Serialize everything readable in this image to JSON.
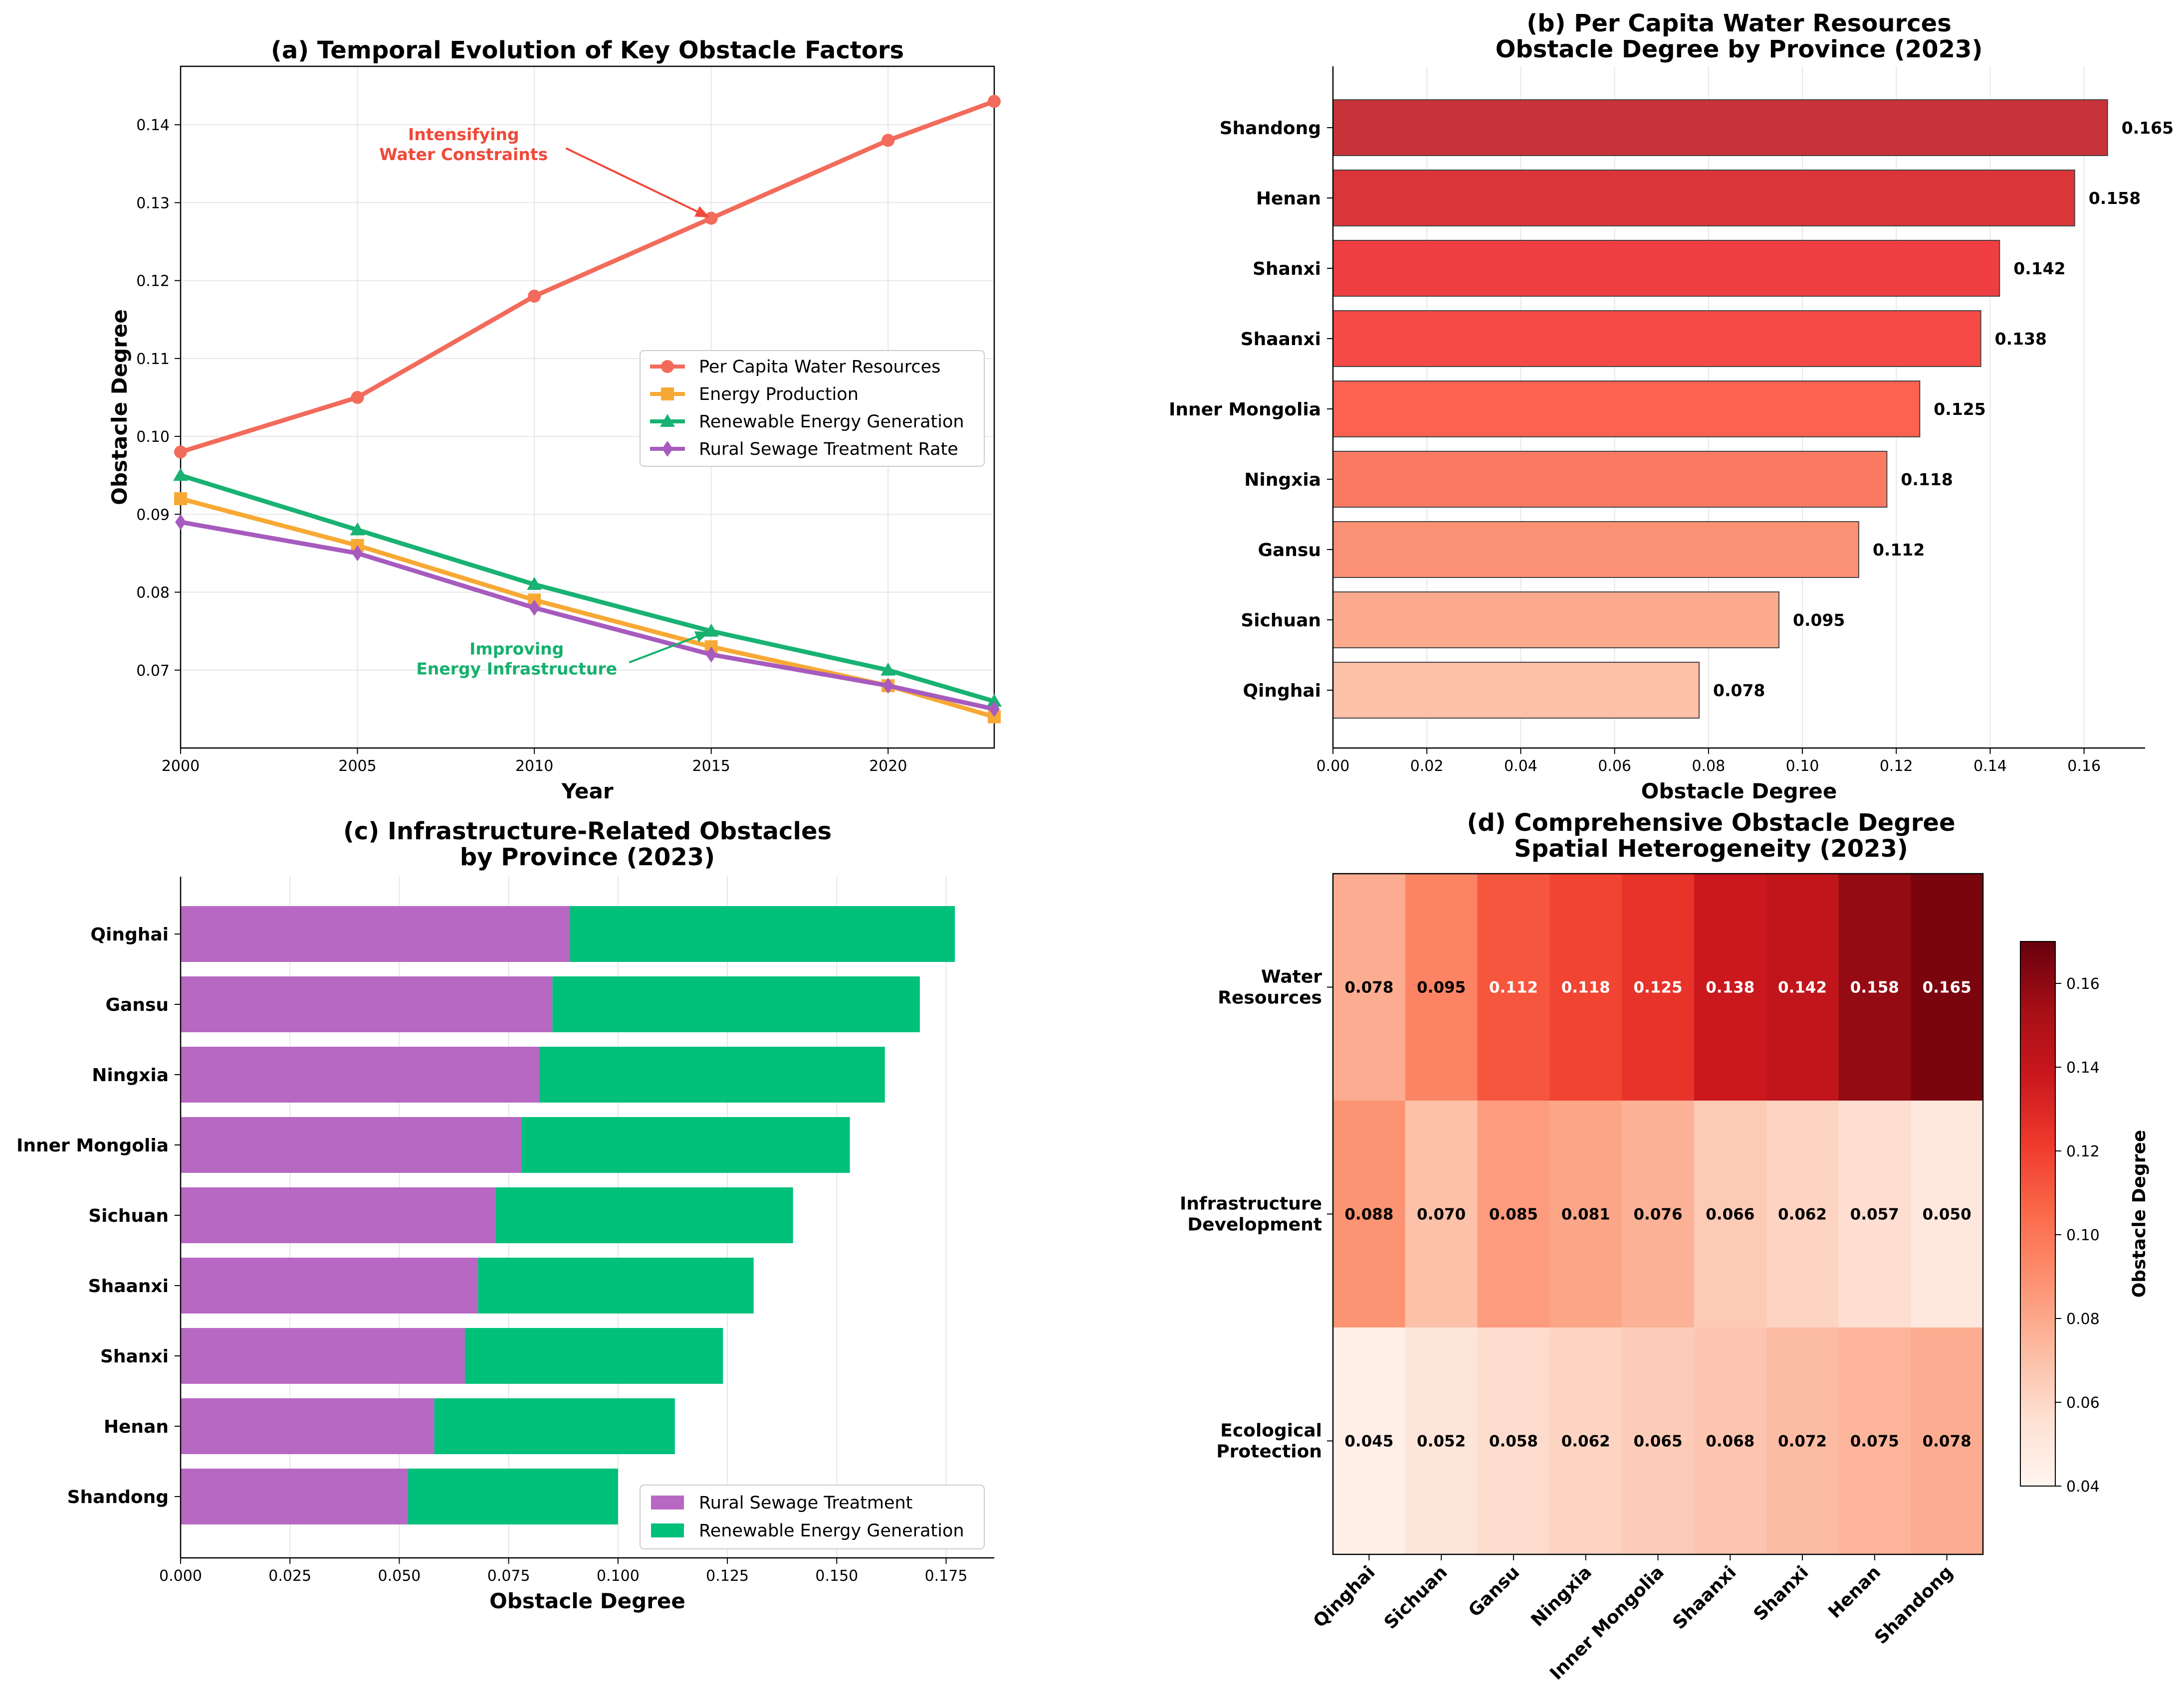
{
  "chart_data": [
    {
      "id": "a",
      "type": "line",
      "title": "(a) Temporal Evolution of Key Obstacle Factors",
      "xlabel": "Year",
      "ylabel": "Obstacle Degree",
      "xlim": [
        2000,
        2023
      ],
      "ylim": [
        0.06,
        0.1475
      ],
      "xticks": [
        "2000",
        "2005",
        "2010",
        "2015",
        "2020"
      ],
      "yticks": [
        "0.07",
        "0.08",
        "0.09",
        "0.10",
        "0.11",
        "0.12",
        "0.13",
        "0.14"
      ],
      "grid": true,
      "legend_position": "center-right",
      "x": [
        2000,
        2005,
        2010,
        2015,
        2020,
        2023
      ],
      "series": [
        {
          "name": "Per Capita Water Resources",
          "color": "#F26B5B",
          "marker": "circle",
          "values": [
            0.098,
            0.105,
            0.118,
            0.128,
            0.138,
            0.143
          ]
        },
        {
          "name": "Energy Production",
          "color": "#F7A935",
          "marker": "square",
          "values": [
            0.092,
            0.086,
            0.079,
            0.073,
            0.068,
            0.064
          ]
        },
        {
          "name": "Renewable Energy Generation",
          "color": "#18B272",
          "marker": "triangle",
          "values": [
            0.095,
            0.088,
            0.081,
            0.075,
            0.07,
            0.066
          ]
        },
        {
          "name": "Rural Sewage Treatment Rate",
          "color": "#A75BBE",
          "marker": "diamond",
          "values": [
            0.089,
            0.085,
            0.078,
            0.072,
            0.068,
            0.065
          ]
        }
      ],
      "annotations": [
        {
          "lines": [
            "Intensifying",
            "Water Constraints"
          ],
          "color": "#F04A3A",
          "target_x": 2015,
          "target_y": 0.128,
          "text_x": 2008,
          "text_y": 0.1375
        },
        {
          "lines": [
            "Improving",
            "Energy Infrastructure"
          ],
          "color": "#16B06C",
          "target_x": 2015,
          "target_y": 0.075,
          "text_x": 2009.5,
          "text_y": 0.0715
        }
      ]
    },
    {
      "id": "b",
      "type": "bar",
      "orientation": "horizontal",
      "title": "(b) Per Capita Water Resources\nObstacle Degree by Province (2023)",
      "xlabel": "Obstacle Degree",
      "xlim": [
        0,
        0.173
      ],
      "xticks": [
        "0.00",
        "0.02",
        "0.04",
        "0.06",
        "0.08",
        "0.10",
        "0.12",
        "0.14",
        "0.16"
      ],
      "grid": true,
      "categories": [
        "Shandong",
        "Henan",
        "Shanxi",
        "Shaanxi",
        "Inner Mongolia",
        "Ningxia",
        "Gansu",
        "Sichuan",
        "Qinghai"
      ],
      "values": [
        0.165,
        0.158,
        0.142,
        0.138,
        0.125,
        0.118,
        0.112,
        0.095,
        0.078
      ],
      "value_labels": [
        "0.165",
        "0.158",
        "0.142",
        "0.138",
        "0.125",
        "0.118",
        "0.112",
        "0.095",
        "0.078"
      ],
      "colors": [
        "#C8323A",
        "#DA3539",
        "#EF3E42",
        "#F54A45",
        "#FB624F",
        "#FB7B62",
        "#FB9174",
        "#FCAA8E",
        "#FDC0A8"
      ]
    },
    {
      "id": "c",
      "type": "bar",
      "orientation": "horizontal",
      "stacked": true,
      "title": "(c) Infrastructure-Related Obstacles\nby Province (2023)",
      "xlabel": "Obstacle Degree",
      "xlim": [
        0,
        0.186
      ],
      "xticks": [
        "0.000",
        "0.025",
        "0.050",
        "0.075",
        "0.100",
        "0.125",
        "0.150",
        "0.175"
      ],
      "grid": true,
      "legend_position": "lower-right",
      "categories": [
        "Qinghai",
        "Gansu",
        "Ningxia",
        "Inner Mongolia",
        "Sichuan",
        "Shaanxi",
        "Shanxi",
        "Henan",
        "Shandong"
      ],
      "series": [
        {
          "name": "Rural Sewage Treatment",
          "color": "#B768C2",
          "values": [
            0.089,
            0.085,
            0.082,
            0.078,
            0.072,
            0.068,
            0.065,
            0.058,
            0.052
          ]
        },
        {
          "name": "Renewable Energy Generation",
          "color": "#01C07A",
          "values": [
            0.088,
            0.084,
            0.079,
            0.075,
            0.068,
            0.063,
            0.059,
            0.055,
            0.048
          ]
        }
      ]
    },
    {
      "id": "d",
      "type": "heatmap",
      "title": "(d) Comprehensive Obstacle Degree\nSpatial Heterogeneity (2023)",
      "colorbar_label": "Obstacle Degree",
      "colorbar_range": [
        0.04,
        0.17
      ],
      "colorbar_ticks": [
        "0.04",
        "0.06",
        "0.08",
        "0.10",
        "0.12",
        "0.14",
        "0.16"
      ],
      "columns": [
        "Qinghai",
        "Sichuan",
        "Gansu",
        "Ningxia",
        "Inner Mongolia",
        "Shaanxi",
        "Shanxi",
        "Henan",
        "Shandong"
      ],
      "rows": [
        {
          "label": [
            "Water",
            "Resources"
          ],
          "values": [
            0.078,
            0.095,
            0.112,
            0.118,
            0.125,
            0.138,
            0.142,
            0.158,
            0.165
          ],
          "labels": [
            "0.078",
            "0.095",
            "0.112",
            "0.118",
            "0.125",
            "0.138",
            "0.142",
            "0.158",
            "0.165"
          ]
        },
        {
          "label": [
            "Infrastructure",
            "Development"
          ],
          "values": [
            0.088,
            0.07,
            0.085,
            0.081,
            0.076,
            0.066,
            0.062,
            0.057,
            0.05
          ],
          "labels": [
            "0.088",
            "0.070",
            "0.085",
            "0.081",
            "0.076",
            "0.066",
            "0.062",
            "0.057",
            "0.050"
          ]
        },
        {
          "label": [
            "Ecological",
            "Protection"
          ],
          "values": [
            0.045,
            0.052,
            0.058,
            0.062,
            0.065,
            0.068,
            0.072,
            0.075,
            0.078
          ],
          "labels": [
            "0.045",
            "0.052",
            "0.058",
            "0.062",
            "0.065",
            "0.068",
            "0.072",
            "0.075",
            "0.078"
          ]
        }
      ]
    }
  ]
}
